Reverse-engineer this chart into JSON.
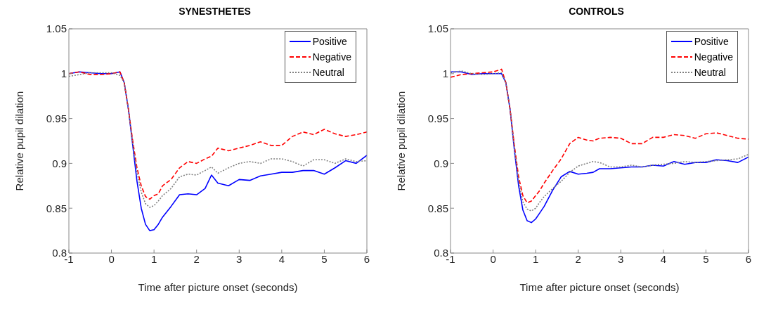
{
  "chart_data": [
    {
      "type": "line",
      "title": "SYNESTHETES",
      "xlabel": "Time after picture onset (seconds)",
      "ylabel": "Relative pupil dilation",
      "xlim": [
        -1,
        6
      ],
      "xticks": [
        -1,
        0,
        1,
        2,
        3,
        4,
        5,
        6
      ],
      "ylim": [
        0.8,
        1.05
      ],
      "yticks": [
        0.8,
        0.85,
        0.9,
        0.95,
        1,
        1.05
      ],
      "legend": "top right",
      "marker": "none",
      "x": [
        -1,
        -0.75,
        -0.5,
        -0.25,
        0,
        0.2,
        0.3,
        0.4,
        0.5,
        0.6,
        0.7,
        0.8,
        0.9,
        1.0,
        1.1,
        1.2,
        1.4,
        1.6,
        1.8,
        2.0,
        2.2,
        2.35,
        2.5,
        2.75,
        3.0,
        3.25,
        3.5,
        3.75,
        4.0,
        4.25,
        4.5,
        4.75,
        5.0,
        5.25,
        5.5,
        5.75,
        6.0
      ],
      "series": [
        {
          "name": "Positive",
          "color": "#0000ff",
          "line_style": "solid",
          "values": [
            1.0,
            1.002,
            1.001,
            1.0,
            1.0,
            1.002,
            0.99,
            0.96,
            0.92,
            0.88,
            0.85,
            0.832,
            0.825,
            0.826,
            0.832,
            0.84,
            0.852,
            0.865,
            0.866,
            0.865,
            0.872,
            0.887,
            0.878,
            0.875,
            0.882,
            0.881,
            0.886,
            0.888,
            0.89,
            0.89,
            0.892,
            0.892,
            0.888,
            0.895,
            0.903,
            0.9,
            0.909
          ]
        },
        {
          "name": "Negative",
          "color": "#ff0000",
          "line_style": "dashed",
          "values": [
            1.0,
            1.002,
            0.999,
            0.999,
            1.0,
            1.002,
            0.99,
            0.96,
            0.925,
            0.895,
            0.875,
            0.863,
            0.86,
            0.864,
            0.866,
            0.875,
            0.882,
            0.895,
            0.902,
            0.9,
            0.905,
            0.908,
            0.917,
            0.914,
            0.917,
            0.92,
            0.924,
            0.92,
            0.92,
            0.93,
            0.935,
            0.932,
            0.938,
            0.933,
            0.93,
            0.932,
            0.935
          ]
        },
        {
          "name": "Neutral",
          "color": "#808080",
          "line_style": "dotted",
          "values": [
            0.997,
            0.999,
            1.001,
            1.001,
            1.001,
            0.998,
            0.99,
            0.96,
            0.922,
            0.89,
            0.868,
            0.855,
            0.851,
            0.853,
            0.858,
            0.864,
            0.872,
            0.885,
            0.888,
            0.887,
            0.892,
            0.896,
            0.889,
            0.895,
            0.9,
            0.902,
            0.9,
            0.905,
            0.905,
            0.902,
            0.897,
            0.904,
            0.904,
            0.9,
            0.905,
            0.902,
            0.903
          ]
        }
      ]
    },
    {
      "type": "line",
      "title": "CONTROLS",
      "xlabel": "Time after picture onset (seconds)",
      "ylabel": "Relative pupil dilation",
      "xlim": [
        -1,
        6
      ],
      "xticks": [
        -1,
        0,
        1,
        2,
        3,
        4,
        5,
        6
      ],
      "ylim": [
        0.8,
        1.05
      ],
      "yticks": [
        0.8,
        0.85,
        0.9,
        0.95,
        1,
        1.05
      ],
      "legend": "top right",
      "marker": "none",
      "x": [
        -1,
        -0.75,
        -0.5,
        -0.25,
        0,
        0.2,
        0.3,
        0.4,
        0.5,
        0.6,
        0.7,
        0.8,
        0.9,
        1.0,
        1.1,
        1.2,
        1.4,
        1.6,
        1.8,
        2.0,
        2.2,
        2.35,
        2.5,
        2.75,
        3.0,
        3.25,
        3.5,
        3.75,
        4.0,
        4.25,
        4.5,
        4.75,
        5.0,
        5.25,
        5.5,
        5.75,
        6.0
      ],
      "series": [
        {
          "name": "Positive",
          "color": "#0000ff",
          "line_style": "solid",
          "values": [
            1.002,
            1.002,
            0.999,
            1.0,
            1.0,
            1.0,
            0.99,
            0.96,
            0.915,
            0.875,
            0.848,
            0.836,
            0.834,
            0.838,
            0.845,
            0.852,
            0.87,
            0.885,
            0.891,
            0.888,
            0.889,
            0.89,
            0.894,
            0.894,
            0.895,
            0.896,
            0.896,
            0.898,
            0.897,
            0.902,
            0.899,
            0.901,
            0.901,
            0.904,
            0.903,
            0.901,
            0.907
          ]
        },
        {
          "name": "Negative",
          "color": "#ff0000",
          "line_style": "dashed",
          "values": [
            0.996,
            0.999,
            1.0,
            1.001,
            1.002,
            1.005,
            0.99,
            0.96,
            0.92,
            0.885,
            0.864,
            0.856,
            0.858,
            0.864,
            0.87,
            0.878,
            0.892,
            0.905,
            0.922,
            0.929,
            0.926,
            0.925,
            0.928,
            0.929,
            0.928,
            0.922,
            0.922,
            0.929,
            0.929,
            0.932,
            0.931,
            0.928,
            0.933,
            0.934,
            0.931,
            0.928,
            0.927
          ]
        },
        {
          "name": "Neutral",
          "color": "#808080",
          "line_style": "dotted",
          "values": [
            1.001,
            1.003,
            1.0,
            0.999,
            1.0,
            1.001,
            0.99,
            0.96,
            0.918,
            0.88,
            0.857,
            0.849,
            0.847,
            0.85,
            0.857,
            0.863,
            0.872,
            0.88,
            0.89,
            0.897,
            0.9,
            0.902,
            0.901,
            0.896,
            0.896,
            0.898,
            0.896,
            0.898,
            0.899,
            0.9,
            0.902,
            0.901,
            0.902,
            0.903,
            0.904,
            0.905,
            0.91
          ]
        }
      ]
    }
  ]
}
